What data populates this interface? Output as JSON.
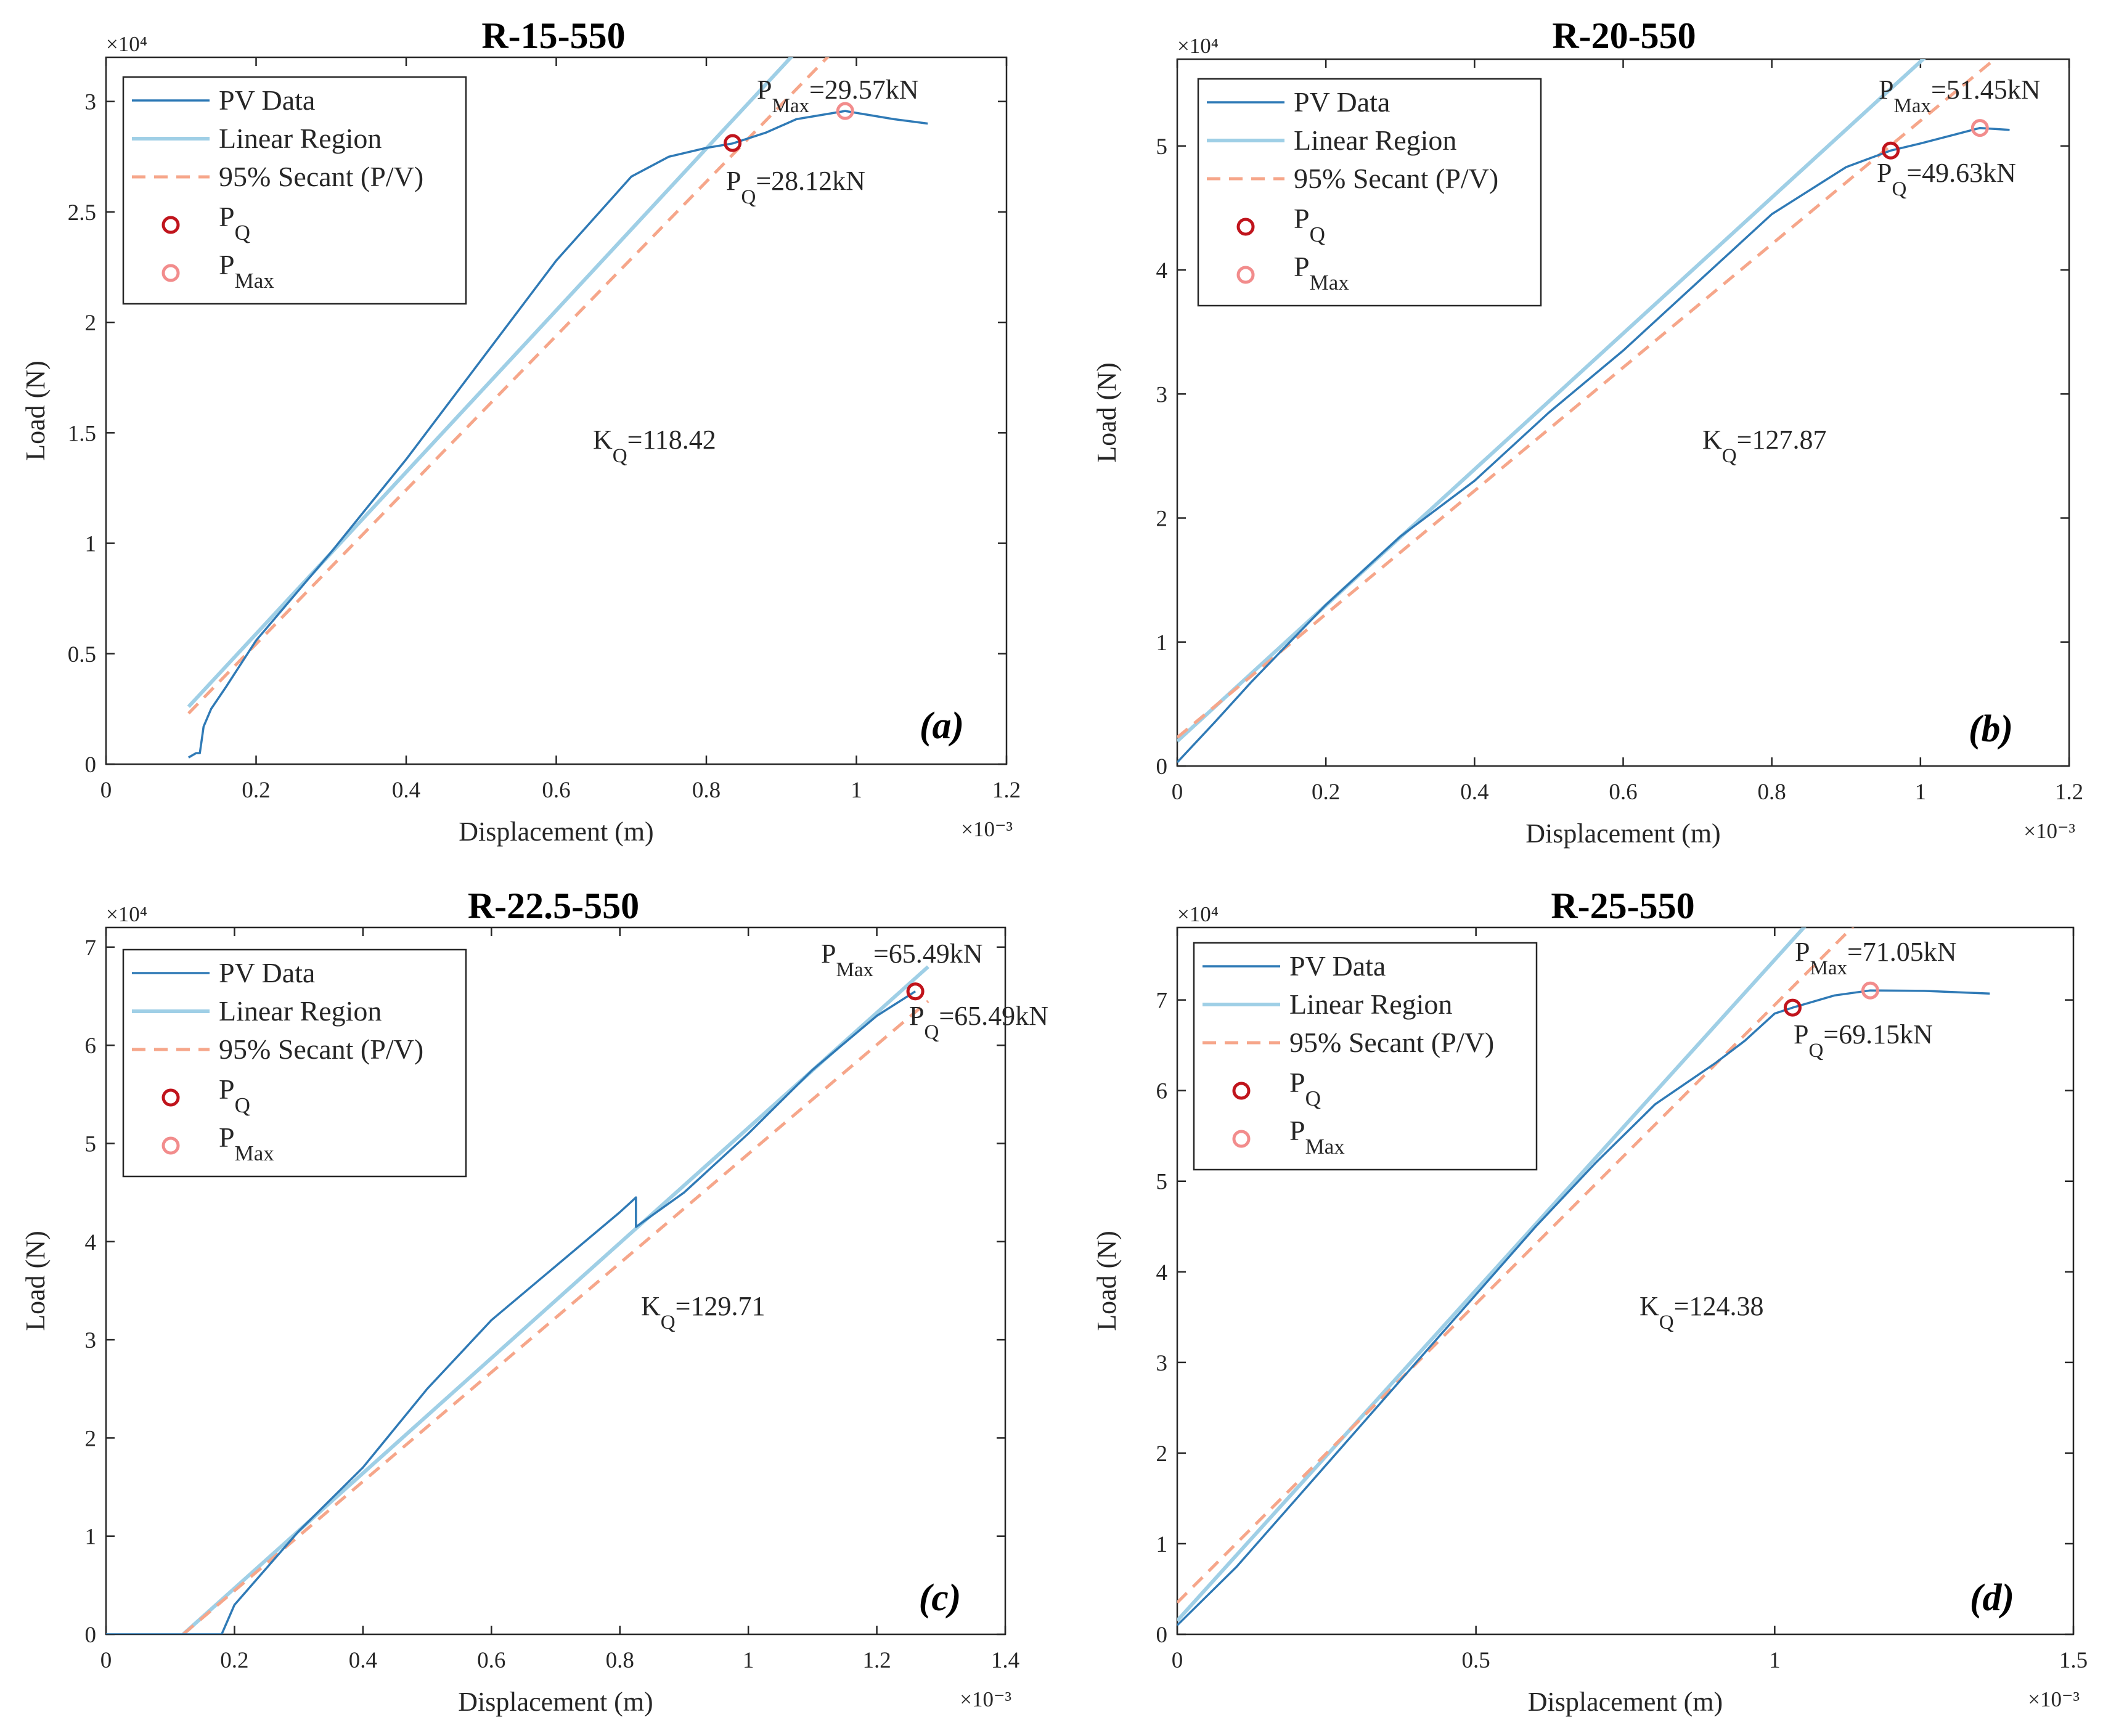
{
  "figure": {
    "x_axis_label": "Displacement (m)",
    "y_axis_label": "Load (N)",
    "x_multiplier": "×10⁻³",
    "y_multiplier": "×10⁴",
    "legend": {
      "pv_data": "PV Data",
      "linear_region": "Linear Region",
      "secant": "95% Secant (P/V)",
      "pq_main": "P",
      "pq_sub": "Q",
      "pmax_main": "P",
      "pmax_sub": "Max"
    },
    "colors": {
      "pv_data": "#2f7ab6",
      "linear_region": "#9fcfe6",
      "secant": "#f6a68a",
      "pq_marker": "#c0141c",
      "pmax_marker": "#f28c8c"
    }
  },
  "chart_data": [
    {
      "type": "line",
      "panel_label": "(a)",
      "title": "R-15-550",
      "xlabel": "Displacement (m)",
      "ylabel": "Load (N)",
      "x_scale_note": "x 10^-3",
      "y_scale_note": "x 10^4",
      "xlim": [
        0,
        1.2
      ],
      "ylim": [
        0,
        3.2
      ],
      "xticks": [
        0,
        0.2,
        0.4,
        0.6,
        0.8,
        1,
        1.2
      ],
      "xtick_labels": [
        "0",
        "0.2",
        "0.4",
        "0.6",
        "0.8",
        "1",
        "1.2"
      ],
      "yticks": [
        0,
        0.5,
        1,
        1.5,
        2,
        2.5,
        3
      ],
      "ytick_labels": [
        "0",
        "0.5",
        "1",
        "1.5",
        "2",
        "2.5",
        "3"
      ],
      "pv_data": [
        [
          0.11,
          0.03
        ],
        [
          0.12,
          0.05
        ],
        [
          0.125,
          0.05
        ],
        [
          0.128,
          0.12
        ],
        [
          0.13,
          0.17
        ],
        [
          0.14,
          0.25
        ],
        [
          0.16,
          0.35
        ],
        [
          0.2,
          0.56
        ],
        [
          0.3,
          0.96
        ],
        [
          0.35,
          1.17
        ],
        [
          0.4,
          1.38
        ],
        [
          0.5,
          1.83
        ],
        [
          0.6,
          2.28
        ],
        [
          0.7,
          2.66
        ],
        [
          0.75,
          2.75
        ],
        [
          0.8,
          2.79
        ],
        [
          0.835,
          2.81
        ],
        [
          0.88,
          2.86
        ],
        [
          0.92,
          2.92
        ],
        [
          0.985,
          2.957
        ],
        [
          1.05,
          2.92
        ],
        [
          1.095,
          2.9
        ]
      ],
      "linear_region": [
        [
          0.11,
          0.26
        ],
        [
          0.94,
          3.3
        ]
      ],
      "secant": [
        [
          0.11,
          0.23
        ],
        [
          0.99,
          3.3
        ]
      ],
      "pq": {
        "x": 0.835,
        "y": 2.812
      },
      "pmax": {
        "x": 0.985,
        "y": 2.957
      },
      "annotations": {
        "pmax_main": "P",
        "pmax_sub": "Max",
        "pmax_value": "=29.57kN",
        "pq_main": "P",
        "pq_sub": "Q",
        "pq_value": "=28.12kN",
        "kq_main": "K",
        "kq_sub": "Q",
        "kq_value": "=118.42"
      }
    },
    {
      "type": "line",
      "panel_label": "(b)",
      "title": "R-20-550",
      "xlabel": "Displacement (m)",
      "ylabel": "Load (N)",
      "x_scale_note": "x 10^-3",
      "y_scale_note": "x 10^4",
      "xlim": [
        0,
        1.2
      ],
      "ylim": [
        0,
        5.7
      ],
      "xticks": [
        0,
        0.2,
        0.4,
        0.6,
        0.8,
        1,
        1.2
      ],
      "xtick_labels": [
        "0",
        "0.2",
        "0.4",
        "0.6",
        "0.8",
        "1",
        "1.2"
      ],
      "yticks": [
        0,
        1,
        2,
        3,
        4,
        5
      ],
      "ytick_labels": [
        "0",
        "1",
        "2",
        "3",
        "4",
        "5"
      ],
      "pv_data": [
        [
          0,
          0.03
        ],
        [
          0.05,
          0.35
        ],
        [
          0.1,
          0.68
        ],
        [
          0.2,
          1.3
        ],
        [
          0.3,
          1.85
        ],
        [
          0.4,
          2.3
        ],
        [
          0.5,
          2.85
        ],
        [
          0.6,
          3.35
        ],
        [
          0.7,
          3.9
        ],
        [
          0.8,
          4.45
        ],
        [
          0.9,
          4.83
        ],
        [
          0.96,
          4.963
        ],
        [
          1,
          5.02
        ],
        [
          1.08,
          5.145
        ],
        [
          1.12,
          5.13
        ]
      ],
      "linear_region": [
        [
          0,
          0.2
        ],
        [
          1.04,
          5.9
        ]
      ],
      "secant": [
        [
          0,
          0.23
        ],
        [
          1.12,
          5.8
        ]
      ],
      "pq": {
        "x": 0.96,
        "y": 4.963
      },
      "pmax": {
        "x": 1.08,
        "y": 5.145
      },
      "annotations": {
        "pmax_main": "P",
        "pmax_sub": "Max",
        "pmax_value": "=51.45kN",
        "pq_main": "P",
        "pq_sub": "Q",
        "pq_value": "=49.63kN",
        "kq_main": "K",
        "kq_sub": "Q",
        "kq_value": "=127.87"
      }
    },
    {
      "type": "line",
      "panel_label": "(c)",
      "title": "R-22.5-550",
      "xlabel": "Displacement (m)",
      "ylabel": "Load (N)",
      "x_scale_note": "x 10^-3",
      "y_scale_note": "x 10^4",
      "xlim": [
        0,
        1.4
      ],
      "ylim": [
        0,
        7.2
      ],
      "xticks": [
        0,
        0.2,
        0.4,
        0.6,
        0.8,
        1,
        1.2,
        1.4
      ],
      "xtick_labels": [
        "0",
        "0.2",
        "0.4",
        "0.6",
        "0.8",
        "1",
        "1.2",
        "1.4"
      ],
      "yticks": [
        0,
        1,
        2,
        3,
        4,
        5,
        6,
        7
      ],
      "ytick_labels": [
        "0",
        "1",
        "2",
        "3",
        "4",
        "5",
        "6",
        "7"
      ],
      "pv_data": [
        [
          0,
          0
        ],
        [
          0.18,
          0
        ],
        [
          0.2,
          0.3
        ],
        [
          0.3,
          1.05
        ],
        [
          0.4,
          1.7
        ],
        [
          0.5,
          2.5
        ],
        [
          0.6,
          3.2
        ],
        [
          0.7,
          3.75
        ],
        [
          0.8,
          4.3
        ],
        [
          0.825,
          4.45
        ],
        [
          0.825,
          4.15
        ],
        [
          0.9,
          4.5
        ],
        [
          1,
          5.1
        ],
        [
          1.1,
          5.75
        ],
        [
          1.2,
          6.3
        ],
        [
          1.26,
          6.549
        ]
      ],
      "linear_region": [
        [
          0.12,
          0
        ],
        [
          1.28,
          6.8
        ]
      ],
      "secant": [
        [
          0.12,
          0
        ],
        [
          1.28,
          6.45
        ]
      ],
      "pq": {
        "x": 1.26,
        "y": 6.549
      },
      "pmax": {
        "x": 1.26,
        "y": 6.549
      },
      "annotations": {
        "pmax_main": "P",
        "pmax_sub": "Max",
        "pmax_value": "=65.49kN",
        "pq_main": "P",
        "pq_sub": "Q",
        "pq_value": "=65.49kN",
        "kq_main": "K",
        "kq_sub": "Q",
        "kq_value": "=129.71"
      }
    },
    {
      "type": "line",
      "panel_label": "(d)",
      "title": "R-25-550",
      "xlabel": "Displacement (m)",
      "ylabel": "Load (N)",
      "x_scale_note": "x 10^-3",
      "y_scale_note": "x 10^4",
      "xlim": [
        0,
        1.5
      ],
      "ylim": [
        0,
        7.8
      ],
      "xticks": [
        0,
        0.5,
        1,
        1.5
      ],
      "xtick_labels": [
        "0",
        "0.5",
        "1",
        "1.5"
      ],
      "yticks": [
        0,
        1,
        2,
        3,
        4,
        5,
        6,
        7
      ],
      "ytick_labels": [
        "0",
        "1",
        "2",
        "3",
        "4",
        "5",
        "6",
        "7"
      ],
      "pv_data": [
        [
          0,
          0.1
        ],
        [
          0.1,
          0.75
        ],
        [
          0.2,
          1.5
        ],
        [
          0.3,
          2.25
        ],
        [
          0.4,
          3
        ],
        [
          0.5,
          3.75
        ],
        [
          0.6,
          4.5
        ],
        [
          0.7,
          5.2
        ],
        [
          0.8,
          5.85
        ],
        [
          0.9,
          6.3
        ],
        [
          0.95,
          6.55
        ],
        [
          1,
          6.85
        ],
        [
          1.03,
          6.915
        ],
        [
          1.1,
          7.05
        ],
        [
          1.16,
          7.105
        ],
        [
          1.25,
          7.1
        ],
        [
          1.36,
          7.07
        ]
      ],
      "linear_region": [
        [
          0,
          0.15
        ],
        [
          1.09,
          8.1
        ]
      ],
      "secant": [
        [
          0,
          0.35
        ],
        [
          1.16,
          8.0
        ]
      ],
      "pq": {
        "x": 1.03,
        "y": 6.915
      },
      "pmax": {
        "x": 1.16,
        "y": 7.105
      },
      "annotations": {
        "pmax_main": "P",
        "pmax_sub": "Max",
        "pmax_value": "=71.05kN",
        "pq_main": "P",
        "pq_sub": "Q",
        "pq_value": "=69.15kN",
        "kq_main": "K",
        "kq_sub": "Q",
        "kq_value": "=124.38"
      }
    }
  ]
}
